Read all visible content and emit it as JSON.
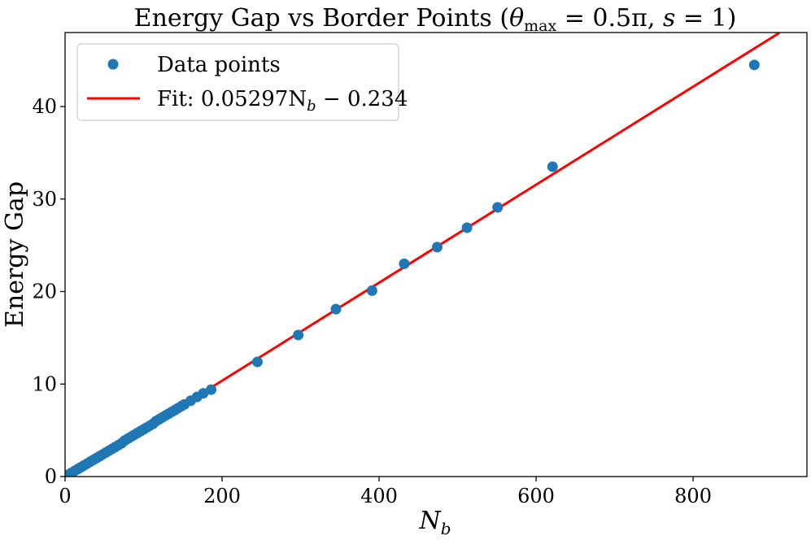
{
  "colors": {
    "points": "#1f77b4",
    "fit_line": "#ff0000",
    "axes": "#000000",
    "legend_border": "#cccccc"
  },
  "chart_data": {
    "type": "scatter",
    "title": "Energy Gap vs Border Points (θmax = 0.5π, s = 1)",
    "title_parts": {
      "prefix": "Energy Gap vs Border Points (",
      "theta": "θ",
      "theta_sub": "max",
      "rest": " = 0.5π,  ",
      "s": "s",
      "suffix": " = 1)"
    },
    "xlabel": "N",
    "xlabel_sub": "b",
    "ylabel": "Energy Gap",
    "xlim": [
      0,
      945
    ],
    "ylim": [
      0,
      48
    ],
    "xticks": [
      0,
      200,
      400,
      600,
      800
    ],
    "yticks": [
      0,
      10,
      20,
      30,
      40
    ],
    "xtick_labels": [
      "0",
      "200",
      "400",
      "600",
      "800"
    ],
    "ytick_labels": [
      "0",
      "10",
      "20",
      "30",
      "40"
    ],
    "grid": false,
    "legend_position": "upper-left",
    "series": [
      {
        "name": "Data points",
        "kind": "scatter",
        "x": [
          4,
          8,
          12,
          16,
          20,
          24,
          28,
          32,
          36,
          40,
          44,
          48,
          52,
          56,
          60,
          64,
          68,
          72,
          76,
          80,
          84,
          88,
          92,
          96,
          100,
          104,
          108,
          112,
          116,
          120,
          124,
          128,
          132,
          136,
          140,
          144,
          148,
          152,
          160,
          168,
          176,
          186,
          245,
          297,
          345,
          391,
          432,
          474,
          512,
          551,
          621,
          878
        ],
        "y": [
          0.2,
          0.4,
          0.6,
          0.8,
          1.0,
          1.2,
          1.4,
          1.6,
          1.8,
          2.0,
          2.2,
          2.4,
          2.6,
          2.8,
          3.0,
          3.2,
          3.4,
          3.6,
          3.9,
          4.1,
          4.3,
          4.5,
          4.7,
          4.9,
          5.1,
          5.3,
          5.5,
          5.7,
          6.0,
          6.2,
          6.4,
          6.6,
          6.8,
          7.0,
          7.2,
          7.4,
          7.6,
          7.8,
          8.2,
          8.6,
          9.0,
          9.4,
          12.4,
          15.3,
          18.1,
          20.1,
          23.0,
          24.8,
          26.9,
          29.1,
          33.5,
          44.5
        ]
      },
      {
        "name": "Fit: 0.05297N",
        "name_sub": "b",
        "name_suffix": " − 0.234",
        "kind": "line",
        "slope": 0.05297,
        "intercept": -0.234,
        "x": [
          4.4,
          910
        ]
      }
    ]
  }
}
